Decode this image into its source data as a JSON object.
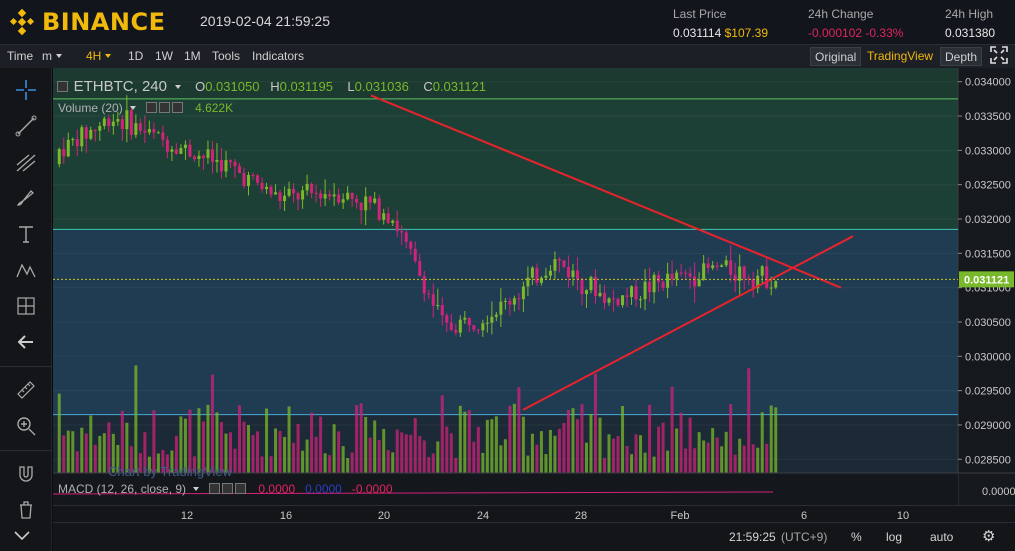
{
  "header": {
    "brand": "BINANCE",
    "datetime": "2019-02-04 21:59:25",
    "last_price_label": "Last Price",
    "last_price": "0.031114",
    "last_price_usd": "$107.39",
    "change_label": "24h Change",
    "change_value": "-0.000102",
    "change_pct": "-0.33%",
    "high_label": "24h High",
    "high_value": "0.031380"
  },
  "toolbar": {
    "time": "Time",
    "minute": "m",
    "interval": "4H",
    "d1": "1D",
    "w1": "1W",
    "m1": "1M",
    "tools": "Tools",
    "indicators": "Indicators",
    "original": "Original",
    "tradingview": "TradingView",
    "depth": "Depth"
  },
  "legend": {
    "symbol": "ETHBTC, 240",
    "o_label": "O",
    "o_value": "0.031050",
    "h_label": "H",
    "h_value": "0.031195",
    "l_label": "L",
    "l_value": "0.031036",
    "c_label": "C",
    "c_value": "0.031121",
    "volume_label": "Volume (20)",
    "volume_value": "4.622K",
    "watermark": "Chart by TradingView",
    "macd_label": "MACD (12, 26, close, 9)",
    "macd_v1": "0.0000",
    "macd_v2": "0.0000",
    "macd_v3": "-0.0000"
  },
  "price_axis": [
    "0.034000",
    "0.033500",
    "0.033000",
    "0.032500",
    "0.032000",
    "0.031500",
    "0.031000",
    "0.030500",
    "0.030000",
    "0.029500",
    "0.029000",
    "0.028500"
  ],
  "current_price_tag": "0.031121",
  "macd_axis": "0.0000",
  "x_axis": [
    "12",
    "16",
    "20",
    "24",
    "28",
    "Feb",
    "6",
    "10"
  ],
  "status": {
    "time": "21:59:25",
    "tz": "(UTC+9)",
    "pct": "%",
    "log": "log",
    "auto": "auto"
  },
  "colors": {
    "up": "#7cb82a",
    "down": "#d2227a",
    "trendline": "#e8232b",
    "hline_green": "#5ec25c",
    "hline_teal": "#3fc7b0",
    "hline_blue": "#4aa8d8",
    "accent": "#f0b90b"
  },
  "chart_data": {
    "type": "candlestick",
    "title": "ETHBTC, 240",
    "ylim": [
      0.0283,
      0.0342
    ],
    "x_ticks": [
      "12",
      "16",
      "20",
      "24",
      "28",
      "Feb",
      "6",
      "10"
    ],
    "horizontal_levels": [
      0.03375,
      0.03185,
      0.02915
    ],
    "current_price": 0.031121,
    "close_path": [
      [
        0.0328,
        0.0334,
        0.0324,
        0.033
      ],
      [
        0.033,
        0.0338,
        0.0326,
        0.0335
      ],
      [
        0.0335,
        0.0338,
        0.0329,
        0.0331
      ],
      [
        0.0331,
        0.0334,
        0.0327,
        0.0328
      ],
      [
        0.0328,
        0.033,
        0.0321,
        0.0323
      ],
      [
        0.0323,
        0.0325,
        0.0319,
        0.0324
      ],
      [
        0.0324,
        0.0326,
        0.032,
        0.0321
      ],
      [
        0.0321,
        0.0322,
        0.0302,
        0.0304
      ],
      [
        0.0304,
        0.0309,
        0.0298,
        0.0307
      ],
      [
        0.0307,
        0.0317,
        0.0306,
        0.0314
      ],
      [
        0.0314,
        0.0315,
        0.0305,
        0.0308
      ],
      [
        0.0308,
        0.0313,
        0.0306,
        0.0311
      ],
      [
        0.0311,
        0.0317,
        0.0309,
        0.0313
      ],
      [
        0.0313,
        0.0314,
        0.0308,
        0.03112
      ]
    ]
  }
}
